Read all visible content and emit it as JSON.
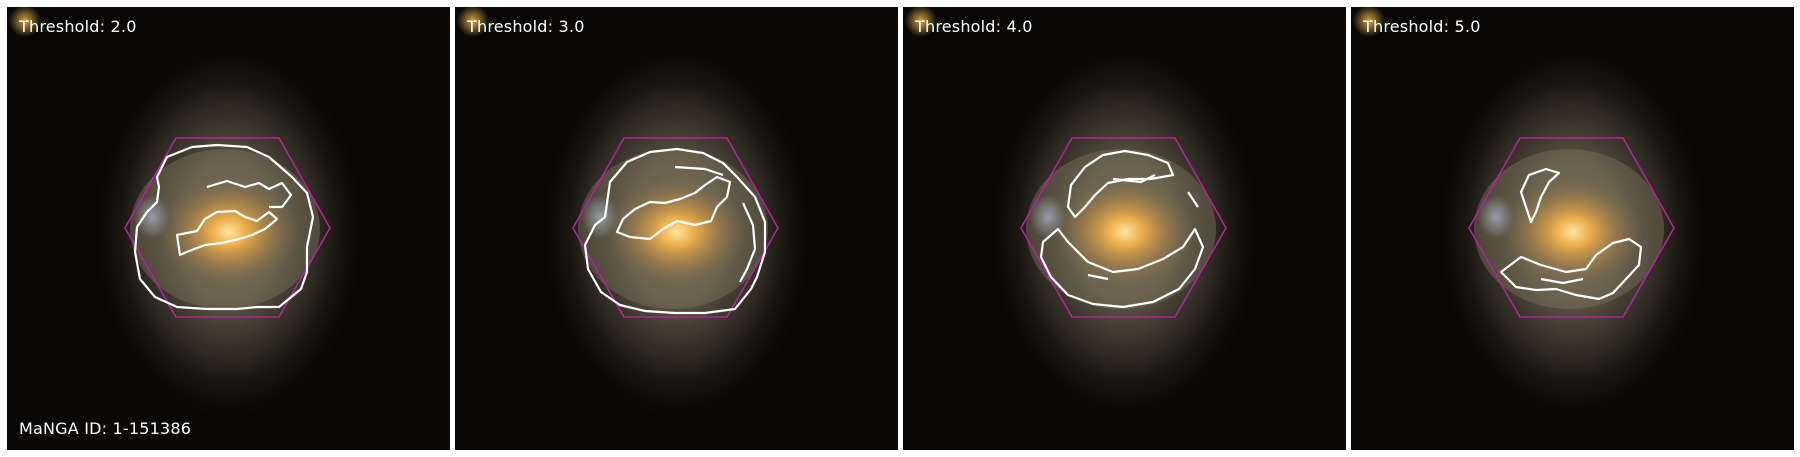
{
  "figure": {
    "manga_label": "MaNGA ID: 1-151386",
    "panels": [
      {
        "threshold_label": "Threshold: 2.0"
      },
      {
        "threshold_label": "Threshold: 3.0"
      },
      {
        "threshold_label": "Threshold: 4.0"
      },
      {
        "threshold_label": "Threshold: 5.0"
      }
    ],
    "colors": {
      "ifu_hexagon": "#b0239c",
      "contour": "#ffffff",
      "background": "#0a0806",
      "galaxy_core": "#f2b24a"
    }
  }
}
